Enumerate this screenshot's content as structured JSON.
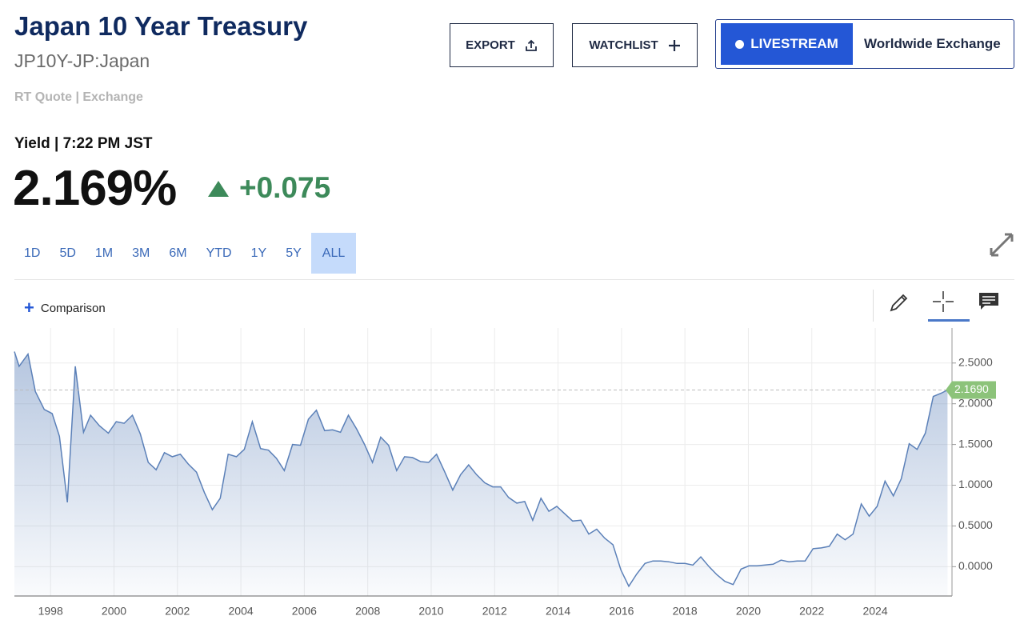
{
  "header": {
    "title": "Japan 10 Year Treasury",
    "symbol": "JP10Y-JP:Japan",
    "quote_source": "RT Quote | Exchange",
    "yield_time": "Yield | 7:22 PM JST",
    "price": "2.169%",
    "change": "+0.075"
  },
  "buttons": {
    "export": "EXPORT",
    "watchlist": "WATCHLIST",
    "livestream": "LIVESTREAM",
    "channel": "Worldwide Exchange"
  },
  "ranges": [
    "1D",
    "5D",
    "1M",
    "3M",
    "6M",
    "YTD",
    "1Y",
    "5Y",
    "ALL"
  ],
  "comparison": "Comparison",
  "chart_data": {
    "type": "area",
    "color": "#5b80b8",
    "x": [
      1996.86,
      1997.01,
      1997.29,
      1997.52,
      1997.8,
      1998.05,
      1998.28,
      1998.53,
      1998.78,
      1999.04,
      1999.26,
      1999.54,
      1999.82,
      2000.07,
      2000.32,
      2000.58,
      2000.83,
      2001.08,
      2001.33,
      2001.59,
      2001.84,
      2002.09,
      2002.34,
      2002.6,
      2002.85,
      2003.1,
      2003.35,
      2003.6,
      2003.86,
      2004.11,
      2004.36,
      2004.62,
      2004.87,
      2005.12,
      2005.37,
      2005.63,
      2005.88,
      2006.13,
      2006.38,
      2006.64,
      2006.89,
      2007.14,
      2007.39,
      2007.65,
      2007.9,
      2008.15,
      2008.41,
      2008.66,
      2008.91,
      2009.16,
      2009.41,
      2009.67,
      2009.92,
      2010.17,
      2010.42,
      2010.68,
      2010.93,
      2011.18,
      2011.43,
      2011.69,
      2011.94,
      2012.19,
      2012.44,
      2012.7,
      2012.95,
      2013.2,
      2013.46,
      2013.71,
      2013.96,
      2014.21,
      2014.46,
      2014.72,
      2014.97,
      2015.22,
      2015.47,
      2015.73,
      2015.98,
      2016.23,
      2016.48,
      2016.74,
      2016.99,
      2017.24,
      2017.49,
      2017.75,
      2018.0,
      2018.25,
      2018.5,
      2018.76,
      2019.01,
      2019.26,
      2019.52,
      2019.77,
      2020.02,
      2020.27,
      2020.53,
      2020.78,
      2021.03,
      2021.28,
      2021.54,
      2021.79,
      2022.04,
      2022.3,
      2022.55,
      2022.8,
      2023.05,
      2023.3,
      2023.56,
      2023.81,
      2024.06,
      2024.31,
      2024.57,
      2024.82,
      2025.07,
      2025.32,
      2025.58,
      2025.83,
      2026.08,
      2026.28
    ],
    "values": [
      2.64,
      2.46,
      2.61,
      2.15,
      1.93,
      1.88,
      1.6,
      0.79,
      2.46,
      1.65,
      1.86,
      1.73,
      1.64,
      1.78,
      1.76,
      1.86,
      1.63,
      1.28,
      1.19,
      1.4,
      1.35,
      1.38,
      1.26,
      1.16,
      0.91,
      0.7,
      0.84,
      1.38,
      1.35,
      1.44,
      1.78,
      1.45,
      1.43,
      1.33,
      1.18,
      1.5,
      1.49,
      1.81,
      1.92,
      1.67,
      1.68,
      1.65,
      1.86,
      1.69,
      1.5,
      1.28,
      1.59,
      1.49,
      1.18,
      1.35,
      1.34,
      1.29,
      1.28,
      1.38,
      1.17,
      0.94,
      1.13,
      1.25,
      1.13,
      1.03,
      0.98,
      0.98,
      0.85,
      0.78,
      0.8,
      0.57,
      0.84,
      0.68,
      0.74,
      0.65,
      0.56,
      0.57,
      0.4,
      0.46,
      0.35,
      0.27,
      -0.04,
      -0.24,
      -0.09,
      0.04,
      0.07,
      0.07,
      0.06,
      0.04,
      0.04,
      0.02,
      0.12,
      0.0,
      -0.1,
      -0.18,
      -0.22,
      -0.03,
      0.01,
      0.01,
      0.02,
      0.03,
      0.08,
      0.06,
      0.07,
      0.07,
      0.22,
      0.23,
      0.25,
      0.4,
      0.33,
      0.4,
      0.77,
      0.62,
      0.74,
      1.05,
      0.87,
      1.08,
      1.51,
      1.44,
      1.64,
      2.09,
      2.13,
      2.169
    ],
    "xlim": [
      1996.86,
      2026.42
    ],
    "ylim": [
      -0.36,
      2.93
    ],
    "xticks": [
      1998,
      2000,
      2002,
      2004,
      2006,
      2008,
      2010,
      2012,
      2014,
      2016,
      2018,
      2020,
      2022,
      2024
    ],
    "yticks": [
      {
        "value": 0,
        "label": "0.0000"
      },
      {
        "value": 0.5,
        "label": "0.5000"
      },
      {
        "value": 1,
        "label": "1.0000"
      },
      {
        "value": 1.5,
        "label": "1.5000"
      },
      {
        "value": 2,
        "label": "2.0000"
      },
      {
        "value": 2.5,
        "label": "2.5000"
      }
    ],
    "current": {
      "value": 2.169,
      "label": "2.1690"
    },
    "grid": true
  }
}
